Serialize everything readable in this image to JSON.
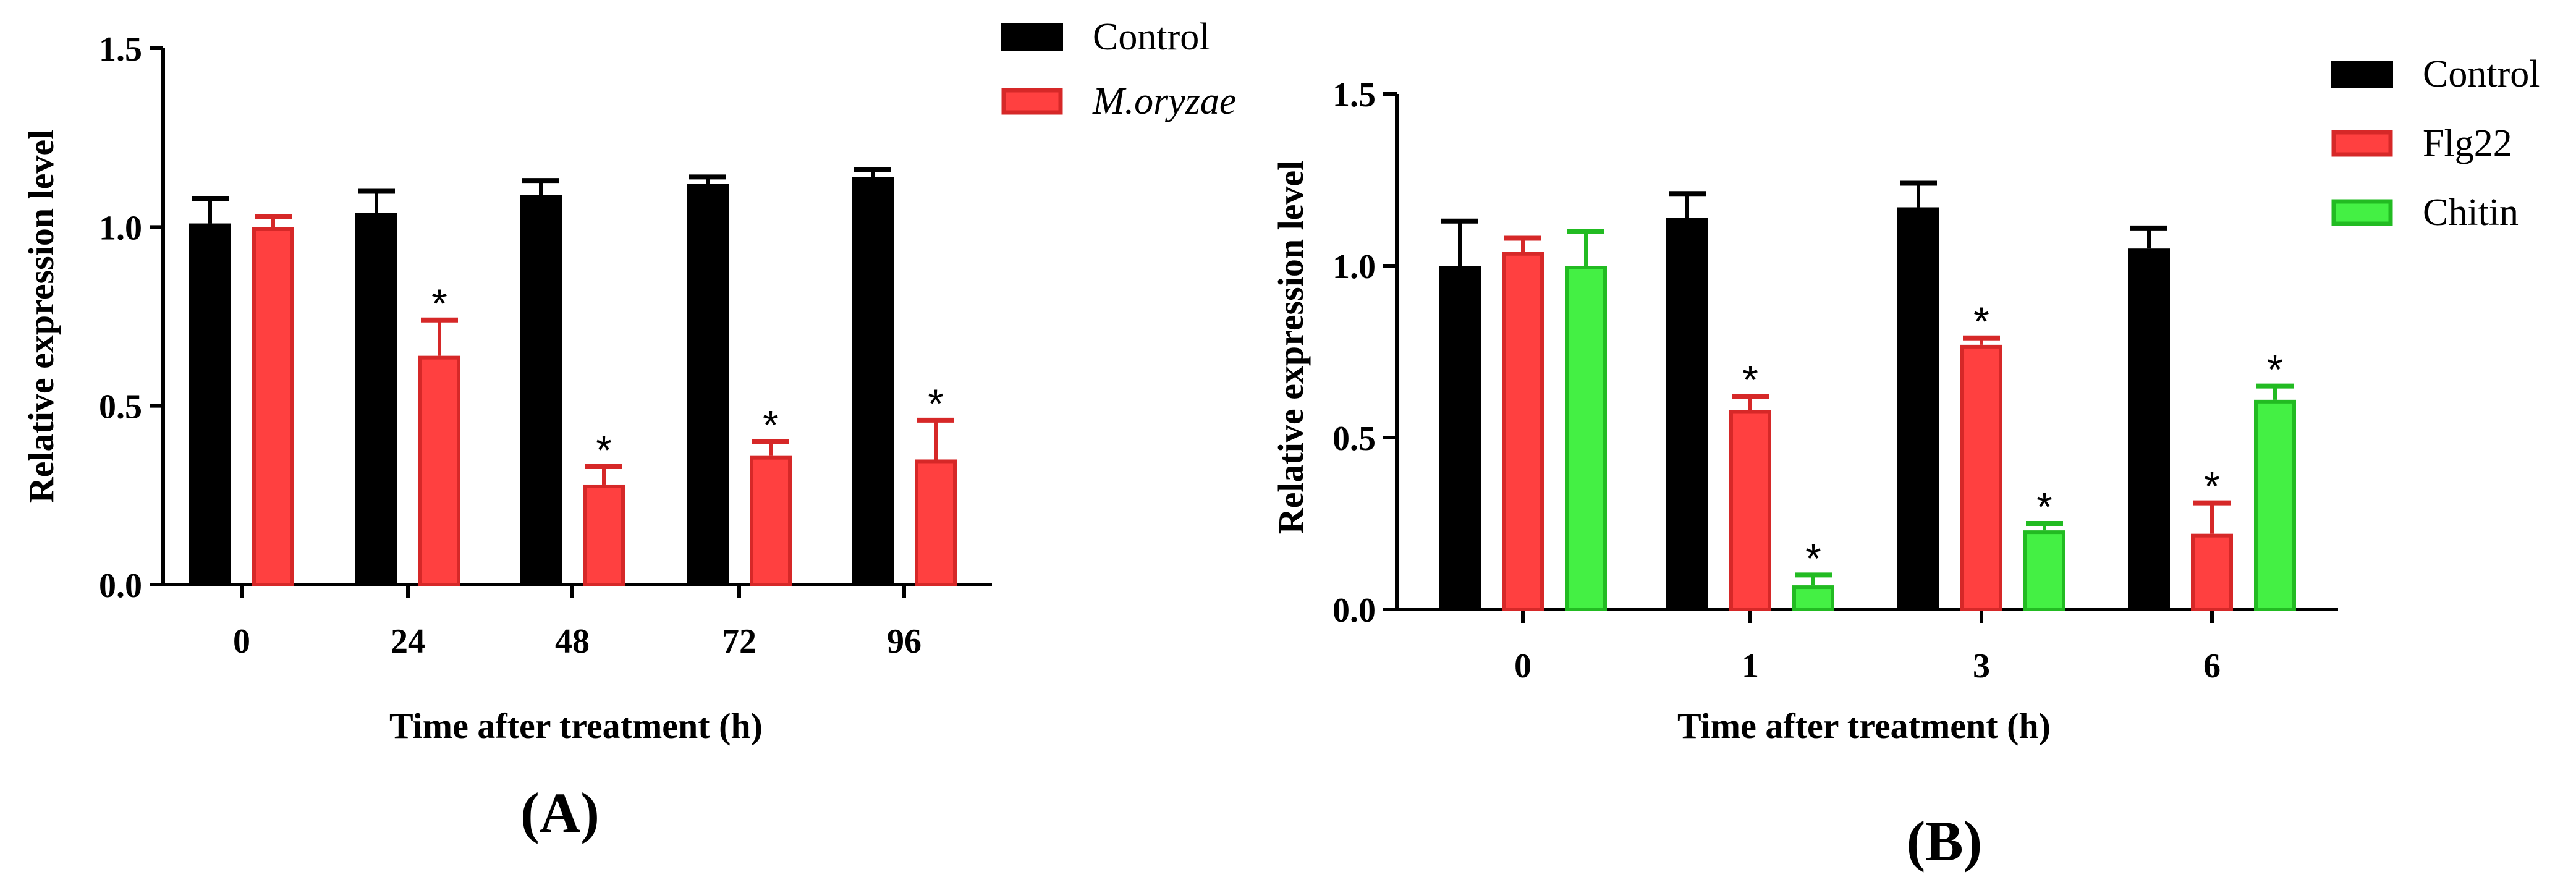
{
  "chart_data": [
    {
      "type": "bar",
      "panel_label": "(A)",
      "ylabel": "Relative expression level",
      "xlabel": "Time after treatment (h)",
      "ylim": [
        0,
        1.5
      ],
      "yticks": [
        "0.0",
        "0.5",
        "1.0",
        "1.5"
      ],
      "categories": [
        "0",
        "24",
        "48",
        "72",
        "96"
      ],
      "legend_position": "top-right",
      "series": [
        {
          "name": "Control",
          "italic": false,
          "color": "#000000",
          "edge": "#000000",
          "values": [
            1.01,
            1.04,
            1.09,
            1.12,
            1.14
          ],
          "errors": [
            0.07,
            0.06,
            0.04,
            0.02,
            0.02
          ],
          "significant": [
            false,
            false,
            false,
            false,
            false
          ]
        },
        {
          "name": "M.oryzae",
          "italic": true,
          "color": "#ff4040",
          "edge": "#d62828",
          "values": [
            1.0,
            0.64,
            0.28,
            0.36,
            0.35
          ],
          "errors": [
            0.03,
            0.1,
            0.05,
            0.04,
            0.11
          ],
          "significant": [
            false,
            true,
            true,
            true,
            true
          ]
        }
      ],
      "significance_marker": "*"
    },
    {
      "type": "bar",
      "panel_label": "(B)",
      "ylabel": "Relative expression level",
      "xlabel": "Time after treatment (h)",
      "ylim": [
        0,
        1.5
      ],
      "yticks": [
        "0.0",
        "0.5",
        "1.0",
        "1.5"
      ],
      "categories": [
        "0",
        "1",
        "3",
        "6"
      ],
      "legend_position": "top-right",
      "series": [
        {
          "name": "Control",
          "italic": false,
          "color": "#000000",
          "edge": "#000000",
          "values": [
            1.0,
            1.14,
            1.17,
            1.05
          ],
          "errors": [
            0.13,
            0.07,
            0.07,
            0.06
          ],
          "significant": [
            false,
            false,
            false,
            false
          ]
        },
        {
          "name": "Flg22",
          "italic": false,
          "color": "#ff4040",
          "edge": "#d62828",
          "values": [
            1.04,
            0.58,
            0.77,
            0.22
          ],
          "errors": [
            0.04,
            0.04,
            0.02,
            0.09
          ],
          "significant": [
            false,
            true,
            true,
            true
          ]
        },
        {
          "name": "Chitin",
          "italic": false,
          "color": "#44f044",
          "edge": "#22bb22",
          "values": [
            1.0,
            0.07,
            0.23,
            0.61
          ],
          "errors": [
            0.1,
            0.03,
            0.02,
            0.04
          ],
          "significant": [
            false,
            true,
            true,
            true
          ]
        }
      ],
      "significance_marker": "*"
    }
  ]
}
